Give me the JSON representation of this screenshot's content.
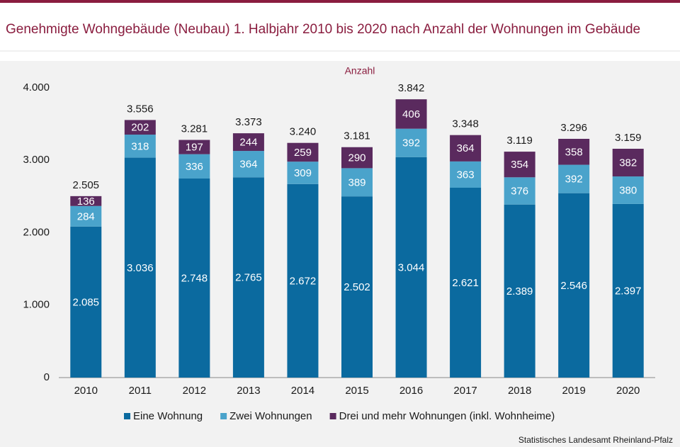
{
  "chart_data": {
    "type": "stacked_bar",
    "title": "Genehmigte Wohngebäude (Neubau) 1. Halbjahr 2010 bis 2020 nach Anzahl der Wohnungen im Gebäude",
    "y_label": "Anzahl",
    "source": "Statistisches Landesamt Rheinland-Pfalz",
    "categories": [
      "2010",
      "2011",
      "2012",
      "2013",
      "2014",
      "2015",
      "2016",
      "2017",
      "2018",
      "2019",
      "2020"
    ],
    "series": [
      {
        "name": "Eine Wohnung",
        "color": "#0b6a9f",
        "values": [
          2085,
          3036,
          2748,
          2765,
          2672,
          2502,
          3044,
          2621,
          2389,
          2546,
          2397
        ],
        "value_labels": [
          "2.085",
          "3.036",
          "2.748",
          "2.765",
          "2.672",
          "2.502",
          "3.044",
          "2.621",
          "2.389",
          "2.546",
          "2.397"
        ]
      },
      {
        "name": "Zwei Wohnungen",
        "color": "#4aa3cb",
        "values": [
          284,
          318,
          336,
          364,
          309,
          389,
          392,
          363,
          376,
          392,
          380
        ]
      },
      {
        "name": "Drei und mehr Wohnungen (inkl. Wohnheime)",
        "color": "#5a2a5e",
        "values": [
          136,
          202,
          197,
          244,
          259,
          290,
          406,
          364,
          354,
          358,
          382
        ]
      }
    ],
    "totals": {
      "values": [
        2505,
        3556,
        3281,
        3373,
        3240,
        3181,
        3842,
        3348,
        3119,
        3296,
        3159
      ],
      "value_labels": [
        "2.505",
        "3.556",
        "3.281",
        "3.373",
        "3.240",
        "3.181",
        "3.842",
        "3.348",
        "3.119",
        "3.296",
        "3.159"
      ]
    },
    "ylim": [
      0,
      4000
    ],
    "yticks": [
      0,
      {
        "value": 1000,
        "label": "1.000"
      },
      {
        "value": 2000,
        "label": "2.000"
      },
      {
        "value": 3000,
        "label": "3.000"
      },
      {
        "value": 4000,
        "label": "4.000"
      }
    ]
  }
}
